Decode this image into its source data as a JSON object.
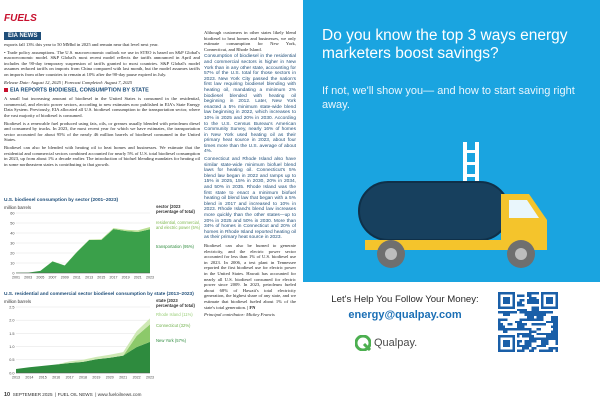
{
  "masthead": {
    "brand": "FUELS",
    "section": "EIA NEWS"
  },
  "left_col": {
    "p1": "exports fall 13% this year to 50 MMbd in 2025 and remain near that level next year.",
    "p2": "• Trade policy assumptions. The U.S. macroeconomic outlook we use in STEO is based on S&P Global's macroeconomic model. S&P Global's most recent model reflects the tariffs announced in April and includes the 90-day temporary suspension of tariffs granted to most countries. S&P Global's model assumes reduced tariffs on imports from China compared with last month, but the model assumes tariffs on imports from other countries to remain at 10% after the 90-day pause expired in July.",
    "release": "Release Date: August 12, 2025 | Forecast Completed: August 7, 2025",
    "heading": "EIA REPORTS BIODIESEL CONSUMPTION BY STATE",
    "p3": "A small but increasing amount of biodiesel in the United States is consumed in the residential, commercial, and electric power sectors, according to new estimates now published in EIA's State Energy Data System. Previously, EIA allocated all U.S. biodiesel consumption to the transportation sector, where the vast majority of biodiesel is consumed.",
    "p4": "Biodiesel is a renewable fuel produced using fats, oils, or greases usually blended with petroleum diesel and consumed by trucks. In 2023, the most recent year for which we have estimates, the transportation sector accounted for about 95% of the nearly 46 million barrels of biodiesel consumed in the United States.",
    "p5": "Biodiesel can also be blended with heating oil to heat homes and businesses. We estimate that the residential and commercial sectors combined accounted for nearly 5% of U.S. total biodiesel consumption in 2023, up from about 1% a decade earlier. The introduction of biofuel blending mandates for heating oil in some northeastern states is contributing to that growth."
  },
  "right_col": {
    "p1": "Although customers in other states likely blend biodiesel to heat homes and businesses, we only estimate consumption for New York, Connecticut, and Rhode Island.",
    "head1": "Consumption of biodiesel in the residential and commercial sectors is higher in New York than in any other state, accounting for 57% of the U.S. total for those sectors in 2023. New York City passed the nation's first law requiring biodiesel blending with heating oil, mandating a minimum 2% biodiesel blended with heating oil beginning in 2012. Later, New York enacted a 5% minimum state-wide blend law beginning in 2022, which increases to 10% in 2025 and 20% in 2030. According to the U.S. Census Bureau's American Community Survey, nearly 16% of homes in New York used heating oil as their primary heat source in 2023, about four times more than the U.S. average of about 4%.",
    "head2": "Connecticut and Rhode Island also have similar state-wide minimum biofuel blend laws for heating oil. Connecticut's 5% blend law began in 2022 and ramps up to 15% in 2025, 15% in 2030, 20% in 2034, and 50% in 2035. Rhode Island was the first state to enact a minimum biofuel heating oil blend law that began with a 5% blend in 2017 and increased to 10% in 2023. Rhode Island's blend law increases more quickly than the other states—up to 20% in 2025 and 50% in 2030. More than 34% of homes in Connecticut and 20% of homes in Rhode Island reported heating oil as their primary heat source in 2023.",
    "p2": "Biodiesel can also be burned to generate electricity, and the electric power sector accounted for less than 1% of U.S. biodiesel use in 2023. In 2006, a test plant in Tennessee reported the first biodiesel use for electric power in the United States. Hawaii has accounted for nearly all U.S. biodiesel consumed for electric power since 2009. In 2023, petroleum fueled about 68% of Hawaii's total electricity generation, the highest share of any state, and we estimate that biodiesel fueled about 1% of the state's total generation. ",
    "end": "| FN",
    "credit": "Principal contributor: Mickey Francis"
  },
  "chart_data": [
    {
      "type": "area",
      "title": "U.S. biodiesel consumption by sector (2001–2023)",
      "ylabel": "million barrels",
      "x": [
        2001,
        2003,
        2005,
        2007,
        2009,
        2011,
        2013,
        2015,
        2017,
        2019,
        2021,
        2023
      ],
      "ylim": [
        0,
        60
      ],
      "yticks": [
        0,
        10,
        20,
        30,
        40,
        50,
        60
      ],
      "series": [
        {
          "name": "transportation (95%)",
          "color": "#3aa04a",
          "values": [
            0.2,
            0.4,
            2.1,
            11.6,
            7.5,
            21.0,
            33.0,
            33.0,
            44.0,
            42.0,
            41.0,
            43.7
          ]
        },
        {
          "name": "residential, commercial, and electric power (5%)",
          "color": "#b9df92",
          "values": [
            0.0,
            0.0,
            0.0,
            0.1,
            0.1,
            0.3,
            0.4,
            0.7,
            0.9,
            1.2,
            1.6,
            2.3
          ]
        }
      ],
      "legend_title": "sector (2023 percentage of total)",
      "legend": "right",
      "grid": true
    },
    {
      "type": "area",
      "title": "U.S. residential and commercial sector biodiesel consumption by state (2013–2023)",
      "ylabel": "million barrels",
      "x": [
        2013,
        2014,
        2015,
        2016,
        2017,
        2018,
        2019,
        2020,
        2021,
        2022,
        2023
      ],
      "ylim": [
        0,
        2.5
      ],
      "yticks": [
        0.0,
        0.5,
        1.0,
        1.5,
        2.0,
        2.5
      ],
      "series": [
        {
          "name": "New York (57%)",
          "color": "#2e8b3e",
          "values": [
            0.15,
            0.22,
            0.27,
            0.32,
            0.38,
            0.42,
            0.52,
            0.58,
            0.66,
            0.98,
            1.18
          ]
        },
        {
          "name": "Connecticut (32%)",
          "color": "#8cc96a",
          "values": [
            0.0,
            0.0,
            0.0,
            0.0,
            0.0,
            0.0,
            0.0,
            0.0,
            0.0,
            0.42,
            0.66
          ]
        },
        {
          "name": "Rhode Island (11%)",
          "color": "#cfe9b5",
          "values": [
            0.0,
            0.0,
            0.0,
            0.0,
            0.06,
            0.08,
            0.09,
            0.11,
            0.13,
            0.18,
            0.23
          ]
        }
      ],
      "legend_title": "state (2023 percentage of total)",
      "legend": "right",
      "grid": true
    }
  ],
  "footer": {
    "page": "10",
    "issue": "SEPTEMBER 2025",
    "pub": "FUEL OIL NEWS",
    "url": "www.fueloilnews.com"
  },
  "ad": {
    "headline": "Do you know the top 3 ways energy marketers boost savings?",
    "sub": "If not, we'll show you— and how to start saving right away.",
    "cta": "Let's Help You Follow Your Money:",
    "email": "energy@qualpay.com",
    "brand": "Qualpay.",
    "colors": {
      "background": "#1aa4e0",
      "truck_cab": "#f4c42c",
      "tank": "#17405e",
      "wheel": "#6f6f6f"
    }
  }
}
